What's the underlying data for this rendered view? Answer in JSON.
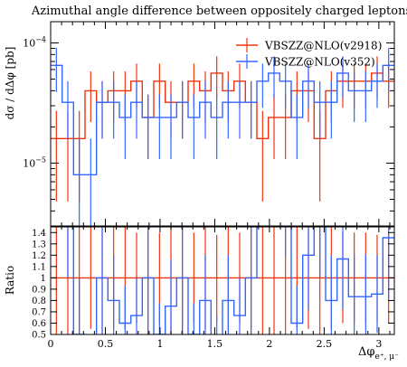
{
  "chart_data": {
    "type": "histogram-with-ratio",
    "title": "Azimuthal angle difference between oppositely charged leptons",
    "ylabel": "dσ / dΔφ [pb]",
    "xlabel": "Δφ",
    "xlabel_sub": "e⁺, μ⁻",
    "ratio_ylabel": "Ratio",
    "xlim": [
      0,
      3.1416
    ],
    "ylim_log": [
      3e-06,
      0.00015
    ],
    "ratio_ylim": [
      0.5,
      1.45
    ],
    "x_ticks": [
      "0",
      "0.5",
      "1",
      "1.5",
      "2",
      "2.5",
      "3"
    ],
    "y_tick_labels": [
      "10",
      "10"
    ],
    "y_tick_exps": [
      "−4",
      "−5"
    ],
    "ratio_ticks": [
      "1.4",
      "1.3",
      "1.2",
      "1.1",
      "1",
      "0.9",
      "0.8",
      "0.7",
      "0.6",
      "0.5"
    ],
    "bin_edges": [
      0,
      0.1047,
      0.2094,
      0.3142,
      0.4189,
      0.5236,
      0.6283,
      0.733,
      0.8378,
      0.9425,
      1.0472,
      1.1519,
      1.2566,
      1.3614,
      1.4661,
      1.5708,
      1.6755,
      1.7802,
      1.885,
      1.9897,
      2.0944,
      2.1991,
      2.3038,
      2.4086,
      2.5133,
      2.618,
      2.7227,
      2.8274,
      2.9322,
      3.0369,
      3.1416
    ],
    "series": [
      {
        "name": "VBSZZ@NLO(v2918)",
        "color": "#ee3311",
        "values": [
          1.6e-05,
          1.6e-05,
          1.6e-05,
          4e-05,
          3.2e-05,
          4e-05,
          4e-05,
          4.8e-05,
          2.4e-05,
          4.8e-05,
          3.2e-05,
          3.2e-05,
          4.8e-05,
          4e-05,
          5.6e-05,
          4e-05,
          4.8e-05,
          3.2e-05,
          1.6e-05,
          2.4e-05,
          2.4e-05,
          4e-05,
          4e-05,
          1.6e-05,
          4e-05,
          4.8e-05,
          4.8e-05,
          4.8e-05,
          5.6e-05,
          4.8e-05
        ],
        "rel_errors": [
          0.7,
          0.7,
          0.7,
          0.45,
          0.5,
          0.45,
          0.45,
          0.4,
          0.55,
          0.4,
          0.5,
          0.5,
          0.4,
          0.45,
          0.38,
          0.45,
          0.4,
          0.5,
          0.7,
          0.55,
          0.55,
          0.45,
          0.45,
          0.7,
          0.45,
          0.4,
          0.4,
          0.4,
          0.38,
          0.4
        ]
      },
      {
        "name": "VBSZZ@NLO(v352)",
        "color": "#3366ff",
        "values": [
          6.5e-05,
          3.2e-05,
          8e-06,
          8e-06,
          3.2e-05,
          3.2e-05,
          2.4e-05,
          3.2e-05,
          2.4e-05,
          2.4e-05,
          2.4e-05,
          3.2e-05,
          2.4e-05,
          3.2e-05,
          2.4e-05,
          3.2e-05,
          3.2e-05,
          3.2e-05,
          4.8e-05,
          5.6e-05,
          4.8e-05,
          2.4e-05,
          4.8e-05,
          3.2e-05,
          3.2e-05,
          5.6e-05,
          4e-05,
          4e-05,
          4.8e-05,
          6.5e-05
        ],
        "rel_errors": [
          0.4,
          0.5,
          1.0,
          1.0,
          0.5,
          0.5,
          0.55,
          0.5,
          0.55,
          0.55,
          0.55,
          0.5,
          0.55,
          0.5,
          0.55,
          0.5,
          0.5,
          0.5,
          0.4,
          0.38,
          0.4,
          0.55,
          0.4,
          0.5,
          0.5,
          0.38,
          0.45,
          0.45,
          0.4,
          0.4
        ]
      }
    ]
  }
}
